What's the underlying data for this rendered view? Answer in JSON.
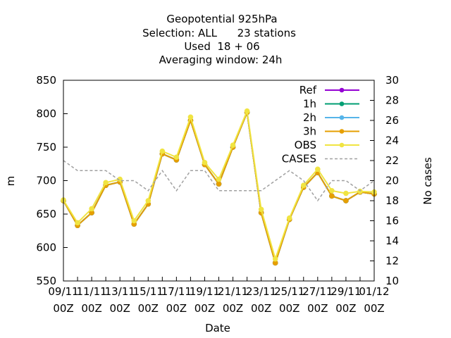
{
  "chart_data": {
    "type": "line",
    "title_lines": [
      "Geopotential 925hPa",
      "Selection: ALL      23 stations",
      "Used  18 + 06",
      "Averaging window: 24h"
    ],
    "xlabel": "Date",
    "ylabel": "m",
    "y2label": "No cases",
    "ylim": [
      550,
      850
    ],
    "y_ticks": [
      "550",
      "600",
      "650",
      "700",
      "750",
      "800",
      "850"
    ],
    "y2lim": [
      10,
      30
    ],
    "y2_ticks": [
      "10",
      "12",
      "14",
      "16",
      "18",
      "20",
      "22",
      "24",
      "26",
      "28",
      "30"
    ],
    "x_ticks": [
      {
        "date": "09/11",
        "time": "00Z"
      },
      {
        "date": "11/11",
        "time": "00Z"
      },
      {
        "date": "13/11",
        "time": "00Z"
      },
      {
        "date": "15/11",
        "time": "00Z"
      },
      {
        "date": "17/11",
        "time": "00Z"
      },
      {
        "date": "19/11",
        "time": "00Z"
      },
      {
        "date": "21/11",
        "time": "00Z"
      },
      {
        "date": "23/11",
        "time": "00Z"
      },
      {
        "date": "25/11",
        "time": "00Z"
      },
      {
        "date": "27/11",
        "time": "00Z"
      },
      {
        "date": "29/11",
        "time": "00Z"
      },
      {
        "date": "01/12",
        "time": "00Z"
      }
    ],
    "x": [
      "09/11 00Z",
      "10/11 00Z",
      "11/11 00Z",
      "12/11 00Z",
      "13/11 00Z",
      "14/11 00Z",
      "15/11 00Z",
      "16/11 00Z",
      "17/11 00Z",
      "18/11 00Z",
      "19/11 00Z",
      "20/11 00Z",
      "21/11 00Z",
      "22/11 00Z",
      "23/11 00Z",
      "24/11 00Z",
      "25/11 00Z",
      "26/11 00Z",
      "27/11 00Z",
      "28/11 00Z",
      "29/11 00Z",
      "30/11 00Z",
      "01/12 00Z"
    ],
    "legend_position": "top-right",
    "series": [
      {
        "name": "Ref",
        "color": "#9400d3",
        "axis": "y",
        "marker": true,
        "dashed": false,
        "values": [
          670,
          633,
          652,
          693,
          698,
          635,
          665,
          740,
          731,
          790,
          724,
          695,
          750,
          802,
          652,
          577,
          642,
          690,
          712,
          677,
          670,
          683,
          680
        ]
      },
      {
        "name": "1h",
        "color": "#009e73",
        "axis": "y",
        "marker": true,
        "dashed": false,
        "values": [
          670,
          633,
          652,
          693,
          698,
          635,
          665,
          740,
          731,
          790,
          724,
          695,
          750,
          802,
          652,
          577,
          642,
          690,
          712,
          677,
          670,
          683,
          680
        ]
      },
      {
        "name": "2h",
        "color": "#56b4e9",
        "axis": "y",
        "marker": true,
        "dashed": false,
        "values": [
          670,
          633,
          652,
          693,
          698,
          635,
          665,
          740,
          731,
          790,
          724,
          695,
          750,
          802,
          652,
          577,
          642,
          690,
          712,
          677,
          670,
          683,
          680
        ]
      },
      {
        "name": "3h",
        "color": "#e69f00",
        "axis": "y",
        "marker": true,
        "dashed": false,
        "values": [
          670,
          633,
          652,
          693,
          698,
          635,
          665,
          740,
          731,
          790,
          724,
          695,
          750,
          802,
          652,
          577,
          642,
          690,
          712,
          677,
          670,
          683,
          680
        ]
      },
      {
        "name": "OBS",
        "color": "#f0e442",
        "axis": "y",
        "marker": true,
        "dashed": false,
        "values": [
          671,
          637,
          658,
          697,
          702,
          640,
          670,
          744,
          735,
          795,
          727,
          702,
          753,
          804,
          657,
          583,
          644,
          693,
          717,
          685,
          681,
          684,
          683
        ]
      },
      {
        "name": "CASES",
        "color": "#a0a0a0",
        "axis": "y2",
        "marker": false,
        "dashed": true,
        "values": [
          22,
          21,
          21,
          21,
          20,
          20,
          19,
          21,
          19,
          21,
          21,
          19,
          19,
          19,
          19,
          20,
          21,
          20,
          18,
          20,
          20,
          19,
          20
        ]
      }
    ]
  }
}
